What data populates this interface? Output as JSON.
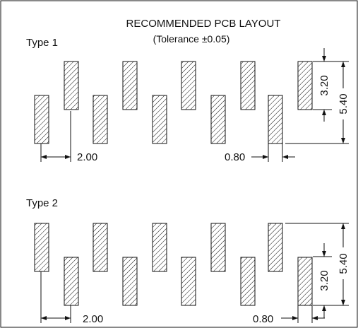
{
  "title": "RECOMMENDED PCB LAYOUT",
  "subtitle": "(Tolerance ±0.05)",
  "type1": {
    "label": "Type 1",
    "pitch": "2.00",
    "pad_width": "0.80",
    "pad_length": "3.20",
    "row_span": "5.40",
    "first_pad_row": "low"
  },
  "type2": {
    "label": "Type 2",
    "pitch": "2.00",
    "pad_width": "0.80",
    "pad_length": "3.20",
    "row_span": "5.40",
    "first_pad_row": "high"
  }
}
